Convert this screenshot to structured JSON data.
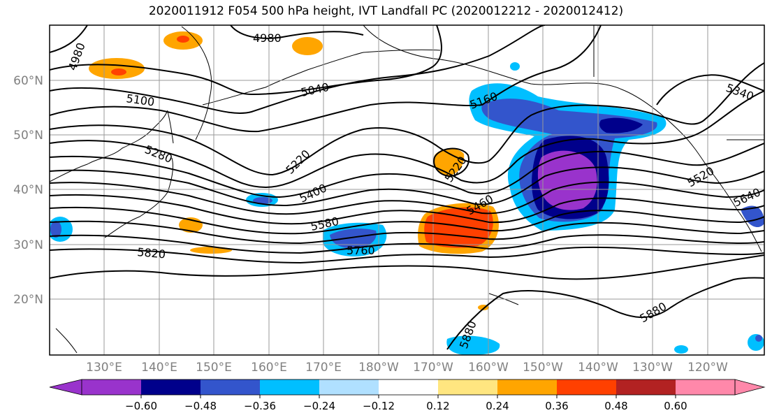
{
  "title": "2020011912 F054 500 hPa height, IVT Landfall PC (2020012212 - 2020012412)",
  "lat_labels": [
    "60°N",
    "50°N",
    "40°N",
    "30°N",
    "20°N"
  ],
  "lon_labels": [
    "130°E",
    "140°E",
    "150°E",
    "160°E",
    "170°E",
    "180°W",
    "170°W",
    "160°W",
    "150°W",
    "140°W",
    "130°W",
    "120°W"
  ],
  "contour_labels": [
    "4980",
    "4980",
    "5040",
    "5100",
    "5160",
    "5340",
    "5280",
    "5220",
    "5220",
    "5400",
    "5460",
    "5520",
    "5580",
    "5640",
    "5760",
    "5820",
    "5880",
    "5880"
  ],
  "colorbar": {
    "tick_labels": [
      "−0.60",
      "−0.48",
      "−0.36",
      "−0.24",
      "−0.12",
      "0.12",
      "0.24",
      "0.36",
      "0.48",
      "0.60"
    ],
    "colors": [
      "#9933cc",
      "#00008b",
      "#3355cc",
      "#00bfff",
      "#b0e0ff",
      "#ffffff",
      "#ffe680",
      "#ffa500",
      "#ff4000",
      "#b22222",
      "#ff88aa"
    ]
  },
  "shading_colors": {
    "neg_060": "#9933cc",
    "neg_048": "#00008b",
    "neg_036": "#3355cc",
    "neg_024": "#00bfff",
    "neg_012": "#b0e0ff",
    "pos_012": "#ffe680",
    "pos_024": "#ffa500",
    "pos_036": "#ff4000"
  }
}
